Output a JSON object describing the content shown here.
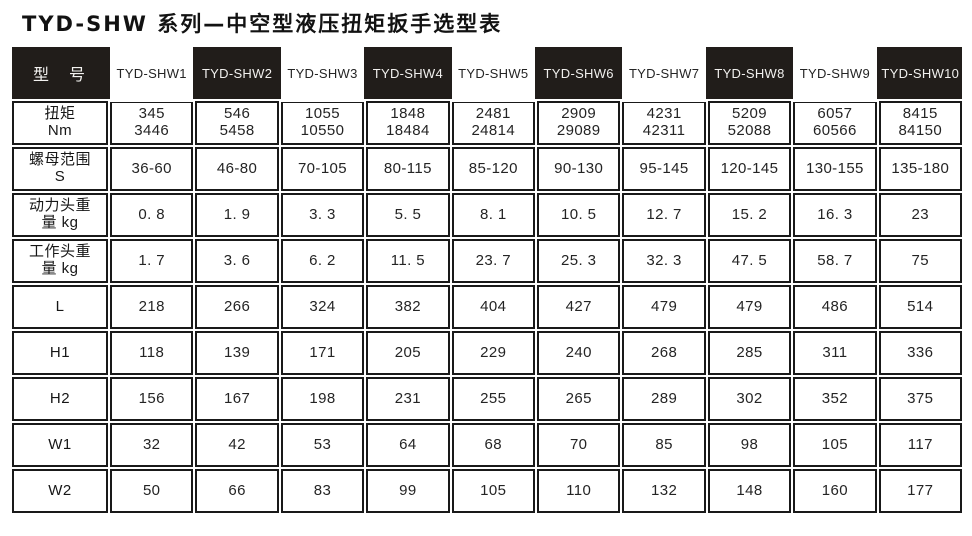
{
  "title": "TYD-SHW 系列—中空型液压扭矩扳手选型表",
  "colors": {
    "header_bg": "#211d1a",
    "cell_border": "#191919",
    "header_light_bg": "#ffffff",
    "text": "#242424"
  },
  "chart_data": {
    "type": "table",
    "title": "TYD-SHW 系列—中空型液压扭矩扳手选型表",
    "header": {
      "corner": "型　号",
      "models": [
        "TYD-SHW1",
        "TYD-SHW2",
        "TYD-SHW3",
        "TYD-SHW4",
        "TYD-SHW5",
        "TYD-SHW6",
        "TYD-SHW7",
        "TYD-SHW8",
        "TYD-SHW9",
        "TYD-SHW10"
      ]
    },
    "rows": [
      {
        "label": "扭矩\nNm",
        "values": [
          "345\n3446",
          "546\n5458",
          "1055\n10550",
          "1848\n18484",
          "2481\n24814",
          "2909\n29089",
          "4231\n42311",
          "5209\n52088",
          "6057\n60566",
          "8415\n84150"
        ]
      },
      {
        "label": "螺母范围\nS",
        "values": [
          "36-60",
          "46-80",
          "70-105",
          "80-115",
          "85-120",
          "90-130",
          "95-145",
          "120-145",
          "130-155",
          "135-180"
        ]
      },
      {
        "label": "动力头重\n量 kg",
        "values": [
          "0. 8",
          "1. 9",
          "3. 3",
          "5. 5",
          "8. 1",
          "10. 5",
          "12. 7",
          "15. 2",
          "16. 3",
          "23"
        ]
      },
      {
        "label": "工作头重\n量 kg",
        "values": [
          "1. 7",
          "3. 6",
          "6. 2",
          "11. 5",
          "23. 7",
          "25. 3",
          "32. 3",
          "47. 5",
          "58. 7",
          "75"
        ]
      },
      {
        "label": "L",
        "values": [
          "218",
          "266",
          "324",
          "382",
          "404",
          "427",
          "479",
          "479",
          "486",
          "514"
        ]
      },
      {
        "label": "H1",
        "values": [
          "118",
          "139",
          "171",
          "205",
          "229",
          "240",
          "268",
          "285",
          "311",
          "336"
        ]
      },
      {
        "label": "H2",
        "values": [
          "156",
          "167",
          "198",
          "231",
          "255",
          "265",
          "289",
          "302",
          "352",
          "375"
        ]
      },
      {
        "label": "W1",
        "values": [
          "32",
          "42",
          "53",
          "64",
          "68",
          "70",
          "85",
          "98",
          "105",
          "117"
        ]
      },
      {
        "label": "W2",
        "values": [
          "50",
          "66",
          "83",
          "99",
          "105",
          "110",
          "132",
          "148",
          "160",
          "177"
        ]
      }
    ]
  }
}
